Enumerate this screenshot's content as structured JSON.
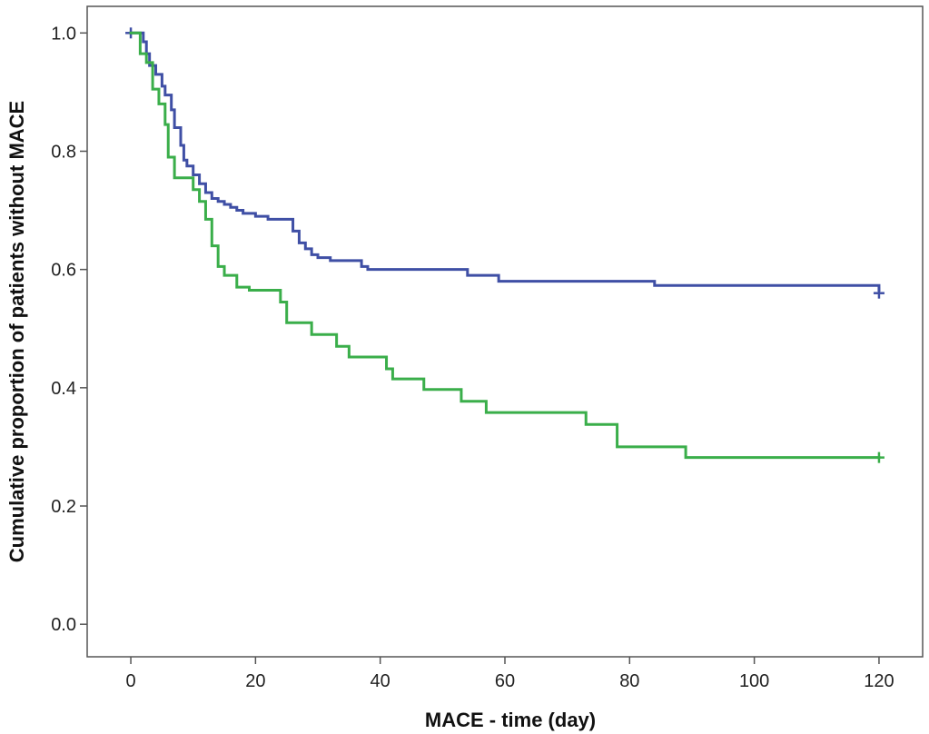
{
  "chart_data": {
    "type": "line",
    "subtype": "step (Kaplan-Meier survival)",
    "title": "",
    "xlabel": "MACE - time (day)",
    "ylabel": "Cumulative proportion of patients without MACE",
    "xlim": [
      -7,
      127
    ],
    "ylim": [
      -0.055,
      1.045
    ],
    "x_ticks": [
      0,
      20,
      40,
      60,
      80,
      100,
      120
    ],
    "y_ticks": [
      0.0,
      0.2,
      0.4,
      0.6,
      0.8,
      1.0
    ],
    "grid": false,
    "legend": "none",
    "series": [
      {
        "color": "#3f4fa5",
        "x": [
          0,
          2,
          2.5,
          3,
          4,
          5,
          5.5,
          6.5,
          7,
          8,
          8.5,
          9,
          10,
          11,
          12,
          13,
          14,
          15,
          16,
          17,
          18,
          20,
          22,
          26,
          27,
          28,
          29,
          30,
          32,
          37,
          38,
          54,
          59,
          84,
          120
        ],
        "y": [
          1.0,
          0.985,
          0.965,
          0.945,
          0.93,
          0.91,
          0.895,
          0.87,
          0.84,
          0.81,
          0.785,
          0.775,
          0.76,
          0.745,
          0.73,
          0.72,
          0.715,
          0.71,
          0.705,
          0.7,
          0.695,
          0.69,
          0.685,
          0.665,
          0.645,
          0.635,
          0.625,
          0.62,
          0.615,
          0.605,
          0.6,
          0.59,
          0.58,
          0.573,
          0.565
        ],
        "censored": [
          [
            0,
            1.0
          ],
          [
            120,
            0.56
          ]
        ]
      },
      {
        "color": "#3aae4a",
        "x": [
          0,
          1.5,
          2.5,
          3.5,
          4.5,
          5.5,
          6,
          7,
          10,
          11,
          12,
          13,
          14,
          15,
          17,
          19,
          24,
          25,
          29,
          33,
          35,
          41,
          42,
          47,
          53,
          57,
          73,
          78,
          89,
          120
        ],
        "y": [
          1.0,
          0.965,
          0.95,
          0.905,
          0.88,
          0.845,
          0.79,
          0.755,
          0.735,
          0.715,
          0.685,
          0.64,
          0.605,
          0.59,
          0.57,
          0.565,
          0.545,
          0.51,
          0.49,
          0.47,
          0.452,
          0.432,
          0.415,
          0.397,
          0.377,
          0.358,
          0.338,
          0.3,
          0.282,
          0.282
        ],
        "censored": [
          [
            120,
            0.282
          ]
        ]
      }
    ]
  }
}
